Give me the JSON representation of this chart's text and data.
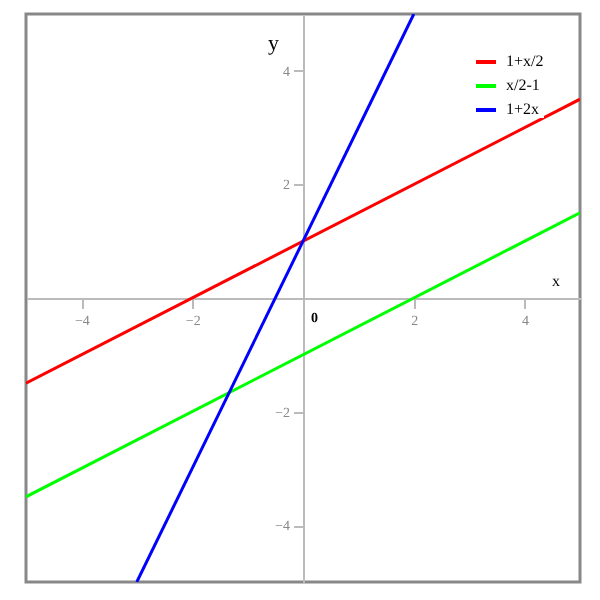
{
  "chart_data": {
    "type": "line",
    "xlabel": "x",
    "ylabel": "y",
    "xlim": [
      -5,
      5
    ],
    "ylim": [
      -5,
      5
    ],
    "xticks": [
      -4,
      -2,
      2,
      4
    ],
    "yticks": [
      -4,
      -2,
      2,
      4
    ],
    "annotations": [
      "0"
    ],
    "grid": false,
    "legend": "top right",
    "marker": "none",
    "line_style": "solid",
    "series": [
      {
        "name": "1+x/2",
        "color": "#ff0000",
        "x": [
          -5,
          5
        ],
        "values": [
          -1.5,
          3.5
        ]
      },
      {
        "name": "x/2-1",
        "color": "#00ff00",
        "x": [
          -5,
          5
        ],
        "values": [
          -3.5,
          1.5
        ]
      },
      {
        "name": "1+2x",
        "color": "#0000ff",
        "x": [
          -3,
          2
        ],
        "values": [
          -5,
          5
        ]
      }
    ]
  }
}
